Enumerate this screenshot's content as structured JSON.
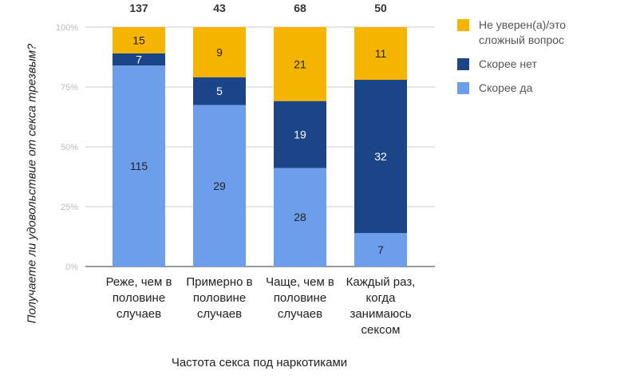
{
  "chart_data": {
    "type": "bar",
    "stacked": "percent",
    "title": "",
    "xlabel": "Частота секса под наркотиками",
    "ylabel": "Получаете ли удовольствие от секса трезвым?",
    "ylim": [
      0,
      100
    ],
    "yticks": [
      "0%",
      "25%",
      "50%",
      "75%",
      "100%"
    ],
    "grid": true,
    "legend_position": "right",
    "categories": [
      [
        "Реже, чем в",
        "половине",
        "случаев"
      ],
      [
        "Примерно в",
        "половине",
        "случаев"
      ],
      [
        "Чаще, чем в",
        "половине",
        "случаев"
      ],
      [
        "Каждый раз,",
        "когда",
        "занимаюсь",
        "сексом"
      ]
    ],
    "totals": [
      137,
      43,
      68,
      50
    ],
    "series": [
      {
        "name": "Скорее да",
        "color": "#6d9eeb",
        "values": [
          115,
          29,
          28,
          7
        ]
      },
      {
        "name": "Скорее нет",
        "color": "#1c4587",
        "values": [
          7,
          5,
          19,
          32
        ]
      },
      {
        "name": "Не уверен(а)/это сложный вопрос",
        "color": "#f4b400",
        "values": [
          15,
          9,
          21,
          11
        ]
      }
    ]
  },
  "legend": [
    {
      "label": "Не уверен(а)/это сложный вопрос",
      "color": "#f4b400"
    },
    {
      "label": "Скорее нет",
      "color": "#1c4587"
    },
    {
      "label": "Скорее да",
      "color": "#6d9eeb"
    }
  ]
}
